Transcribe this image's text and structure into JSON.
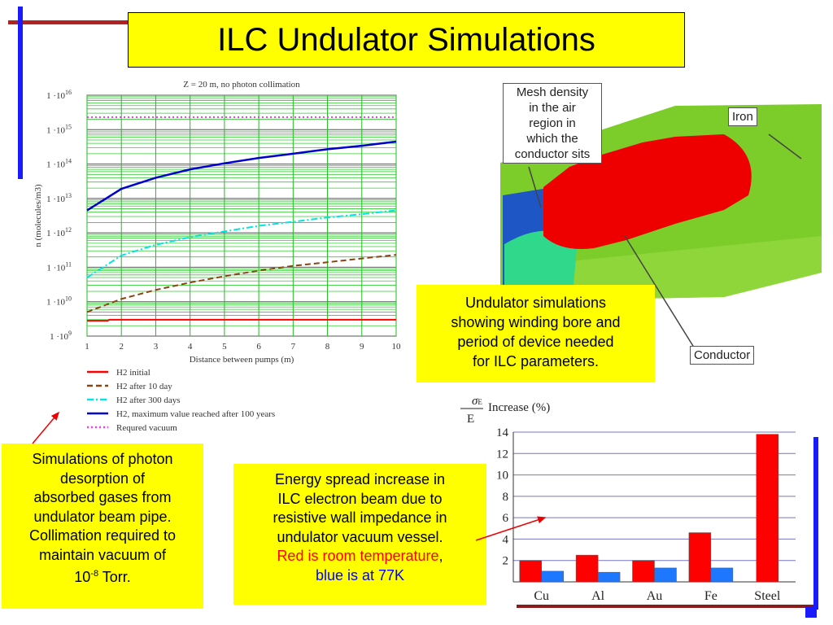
{
  "slide": {
    "title": "ILC Undulator Simulations",
    "desorption_note": [
      "Simulations of photon",
      "desorption of",
      "absorbed gases from",
      "undulator beam pipe.",
      "Collimation required to",
      "maintain vacuum of"
    ],
    "desorption_vacuum": {
      "base": "10",
      "exp": "-8",
      "unit": " Torr."
    },
    "energy_note": [
      "Energy spread increase in",
      "ILC electron beam due to",
      "resistive wall impedance in",
      "undulator vacuum vessel."
    ],
    "energy_red": "Red is room temperature",
    "energy_comma": ",",
    "energy_blue": "blue is at 77K",
    "undulator_note": [
      "Undulator simulations",
      "showing winding bore and",
      "period of device needed",
      "for ILC parameters."
    ],
    "model_labels": {
      "mesh": [
        "Mesh density",
        "in the air",
        "region in",
        "which the",
        "conductor sits"
      ],
      "iron": "Iron",
      "conductor": "Conductor"
    },
    "colors": {
      "title_bg": "#ffff00",
      "accent_red": "#cc0000",
      "accent_blue": "#1a1aff",
      "energy_red": "#ff0000",
      "energy_blue": "#0000ff"
    }
  },
  "chart_data": [
    {
      "type": "line",
      "title": "Z = 20 m, no photon collimation",
      "xlabel": "Distance between pumps (m)",
      "ylabel": "n (molecules/m3)",
      "xlim": [
        1,
        10
      ],
      "ylim": [
        1000000000.0,
        1e+16
      ],
      "yscale": "log",
      "grid": true,
      "xticks": [
        "1",
        "2",
        "3",
        "4",
        "5",
        "6",
        "7",
        "8",
        "9",
        "10"
      ],
      "yticks": [
        {
          "base": "1 ·10",
          "exp": "9"
        },
        {
          "base": "1 ·10",
          "exp": "10"
        },
        {
          "base": "1 ·10",
          "exp": "11"
        },
        {
          "base": "1 ·10",
          "exp": "12"
        },
        {
          "base": "1 ·10",
          "exp": "13"
        },
        {
          "base": "1 ·10",
          "exp": "14"
        },
        {
          "base": "1 ·10",
          "exp": "15"
        },
        {
          "base": "1 ·10",
          "exp": "16"
        }
      ],
      "legend_placement": "bottom",
      "x": [
        1,
        2,
        3,
        4,
        5,
        6,
        7,
        8,
        9,
        10
      ],
      "series": [
        {
          "name": "H2 initial",
          "color": "#ff0000",
          "style": "solid",
          "values": [
            2800000000.0,
            3000000000.0,
            3000000000.0,
            3000000000.0,
            3000000000.0,
            3000000000.0,
            3000000000.0,
            3000000000.0,
            3000000000.0,
            3000000000.0
          ]
        },
        {
          "name": "H2 after 10 day",
          "color": "#8b4513",
          "style": "dashed",
          "values": [
            5000000000.0,
            12000000000.0,
            22000000000.0,
            36000000000.0,
            55000000000.0,
            80000000000.0,
            110000000000.0,
            140000000000.0,
            180000000000.0,
            230000000000.0
          ]
        },
        {
          "name": "H2 after 300 days",
          "color": "#00e5e5",
          "style": "dashdot",
          "values": [
            50000000000.0,
            220000000000.0,
            450000000000.0,
            750000000000.0,
            1100000000000.0,
            1600000000000.0,
            2100000000000.0,
            2800000000000.0,
            3500000000000.0,
            4500000000000.0
          ]
        },
        {
          "name": "H2, maximum value reached after 100 years",
          "color": "#0000cc",
          "style": "solid",
          "values": [
            4500000000000.0,
            19000000000000.0,
            40000000000000.0,
            70000000000000.0,
            105000000000000.0,
            150000000000000.0,
            200000000000000.0,
            270000000000000.0,
            340000000000000.0,
            450000000000000.0
          ]
        },
        {
          "name": "Requred vacuum",
          "color": "#ff33ff",
          "style": "dotted",
          "values": [
            2300000000000000.0,
            2300000000000000.0,
            2300000000000000.0,
            2300000000000000.0,
            2300000000000000.0,
            2300000000000000.0,
            2300000000000000.0,
            2300000000000000.0,
            2300000000000000.0,
            2300000000000000.0
          ]
        }
      ]
    },
    {
      "type": "bar",
      "ylabel": {
        "num": "σ",
        "sub": "E",
        "den": "E",
        "text": "Increase (%)"
      },
      "categories": [
        "Cu",
        "Al",
        "Au",
        "Fe",
        "Steel"
      ],
      "ylim": [
        0,
        14
      ],
      "yticks": [
        "2",
        "4",
        "6",
        "8",
        "10",
        "12",
        "14"
      ],
      "grid": true,
      "series": [
        {
          "color": "#ff0000",
          "values": [
            2.0,
            2.5,
            2.0,
            4.6,
            13.8
          ]
        },
        {
          "color": "#1e78ff",
          "values": [
            1.0,
            0.9,
            1.3,
            1.3,
            null
          ]
        }
      ]
    }
  ]
}
